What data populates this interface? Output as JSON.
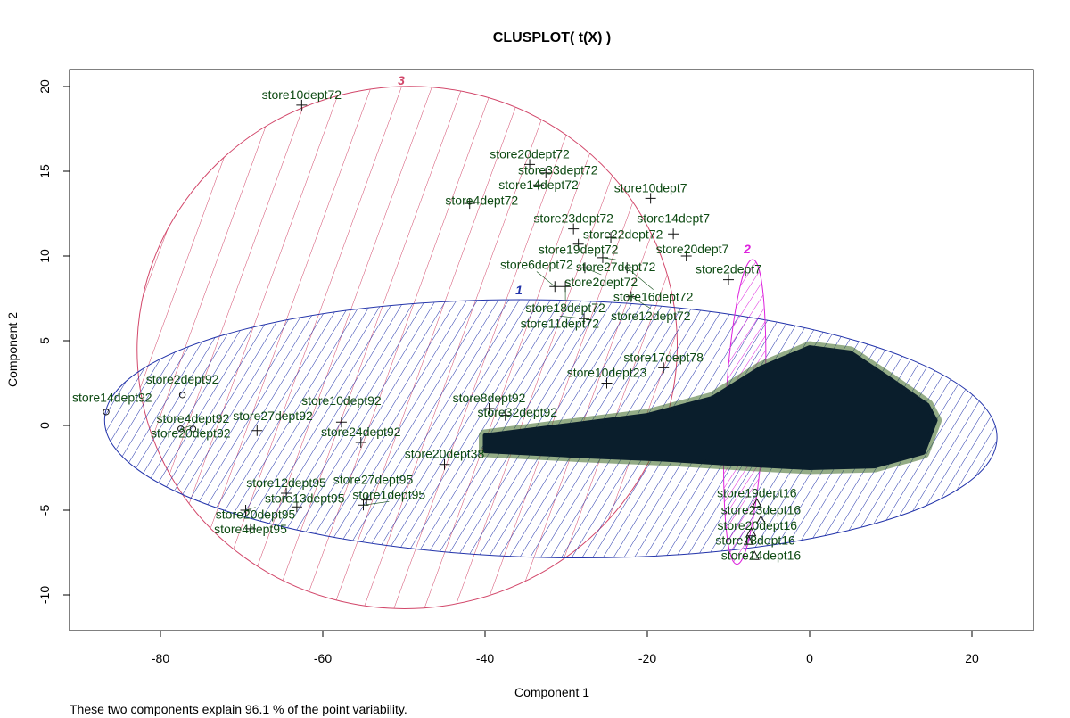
{
  "chart_data": {
    "type": "scatter",
    "title": "CLUSPLOT( t(X) )",
    "xlabel": "Component 1",
    "ylabel": "Component 2",
    "caption": "These two components explain 96.1 % of the point variability.",
    "xlim": [
      -91,
      28
    ],
    "ylim": [
      -12,
      21
    ],
    "x_ticks": [
      -80,
      -60,
      -40,
      -20,
      0,
      20
    ],
    "y_ticks": [
      -10,
      -5,
      0,
      5,
      10,
      15,
      20
    ],
    "grid": false,
    "colors": {
      "cluster1": "#2233aa",
      "cluster2": "#dd22dd",
      "cluster3": "#d2476a",
      "labels": "#0d4a12",
      "points": "#0a1e2c"
    },
    "clusters": [
      {
        "id": "1",
        "center": [
          -31.9,
          -0.2
        ],
        "semi_axes": [
          55,
          7.6
        ],
        "color": "#2233aa",
        "symbol": "circle"
      },
      {
        "id": "2",
        "center": [
          -8.0,
          0.8
        ],
        "semi_axes": [
          2.4,
          9.0
        ],
        "color": "#dd22dd",
        "symbol": "triangle"
      },
      {
        "id": "3",
        "center": [
          -49.6,
          4.6
        ],
        "semi_axes": [
          33.3,
          15.4
        ],
        "color": "#d2476a",
        "symbol": "plus"
      }
    ],
    "dense_region": [
      [
        -40,
        -0.6
      ],
      [
        -30,
        0
      ],
      [
        -20,
        0.6
      ],
      [
        -12,
        1.6
      ],
      [
        -6,
        3.4
      ],
      [
        0,
        4.6
      ],
      [
        5,
        4.3
      ],
      [
        10,
        2.7
      ],
      [
        14.5,
        1.2
      ],
      [
        15.5,
        0.3
      ],
      [
        14,
        -1.6
      ],
      [
        8,
        -2.4
      ],
      [
        0,
        -2.5
      ],
      [
        -8,
        -2.3
      ],
      [
        -18,
        -2.0
      ],
      [
        -28,
        -1.8
      ],
      [
        -40,
        -1.5
      ]
    ],
    "points": [
      {
        "label": "store10dept72",
        "x": -62.6,
        "y": 18.9,
        "cluster": "3"
      },
      {
        "label": "store20dept72",
        "x": -34.5,
        "y": 15.4,
        "cluster": "3"
      },
      {
        "label": "store33dept72",
        "x": -32.5,
        "y": 14.9,
        "cluster": "3"
      },
      {
        "label": "store14dept72",
        "x": -33.4,
        "y": 14.2,
        "cluster": "3"
      },
      {
        "label": "store4dept72",
        "x": -41.9,
        "y": 13.1,
        "cluster": "3"
      },
      {
        "label": "store10dept7",
        "x": -19.6,
        "y": 13.4,
        "cluster": "3"
      },
      {
        "label": "store23dept72",
        "x": -29.1,
        "y": 11.6,
        "cluster": "3"
      },
      {
        "label": "store22dept72",
        "x": -24.5,
        "y": 11.1,
        "cluster": "3"
      },
      {
        "label": "store14dept7",
        "x": -16.8,
        "y": 11.3,
        "cluster": "3"
      },
      {
        "label": "store19dept72",
        "x": -28.5,
        "y": 10.7,
        "cluster": "3"
      },
      {
        "label": "store27dept72",
        "x": -25.5,
        "y": 9.9,
        "cluster": "3"
      },
      {
        "label": "store20dept7",
        "x": -15.2,
        "y": 10.0,
        "cluster": "3"
      },
      {
        "label": "store2dept72",
        "x": -27.7,
        "y": 9.3,
        "cluster": "3"
      },
      {
        "label": "store16dept72",
        "x": -22.5,
        "y": 9.3,
        "cluster": "3"
      },
      {
        "label": "store2dept7",
        "x": -10.0,
        "y": 8.6,
        "cluster": "3"
      },
      {
        "label": "store6dept72",
        "x": -31.4,
        "y": 8.2,
        "cluster": "3"
      },
      {
        "label": "store18dept72",
        "x": -30.1,
        "y": 8.2,
        "cluster": "3"
      },
      {
        "label": "store12dept72",
        "x": -22.0,
        "y": 7.6,
        "cluster": "3"
      },
      {
        "label": "store11dept72",
        "x": -27.8,
        "y": 6.3,
        "cluster": "3"
      },
      {
        "label": "store10dept23",
        "x": -25.0,
        "y": 2.5,
        "cluster": "3"
      },
      {
        "label": "store17dept78",
        "x": -18.0,
        "y": 3.4,
        "cluster": "3"
      },
      {
        "label": "store14dept92",
        "x": -86.7,
        "y": 0.8,
        "cluster": "1"
      },
      {
        "label": "store2dept92",
        "x": -77.3,
        "y": 1.8,
        "cluster": "1"
      },
      {
        "label": "store4dept92",
        "x": -76.0,
        "y": -0.2,
        "cluster": "1"
      },
      {
        "label": "store20dept92",
        "x": -77.5,
        "y": -0.2,
        "cluster": "1"
      },
      {
        "label": "store27dept92",
        "x": -68.1,
        "y": -0.3,
        "cluster": "3"
      },
      {
        "label": "store10dept92",
        "x": -57.7,
        "y": 0.2,
        "cluster": "3"
      },
      {
        "label": "store24dept92",
        "x": -55.3,
        "y": -1.0,
        "cluster": "3"
      },
      {
        "label": "store8dept92",
        "x": -39.5,
        "y": 1.0,
        "cluster": "3"
      },
      {
        "label": "store32dept92",
        "x": -37.5,
        "y": 0.6,
        "cluster": "3"
      },
      {
        "label": "store20dept38",
        "x": -45.0,
        "y": -2.3,
        "cluster": "3"
      },
      {
        "label": "store12dept95",
        "x": -64.5,
        "y": -4.0,
        "cluster": "3"
      },
      {
        "label": "store13dept95",
        "x": -63.2,
        "y": -4.8,
        "cluster": "3"
      },
      {
        "label": "store20dept95",
        "x": -69.5,
        "y": -5.0,
        "cluster": "3"
      },
      {
        "label": "store4dept95",
        "x": -68.9,
        "y": -6.1,
        "cluster": "3"
      },
      {
        "label": "store27dept95",
        "x": -54.6,
        "y": -4.4,
        "cluster": "3"
      },
      {
        "label": "store1dept95",
        "x": -55.0,
        "y": -4.7,
        "cluster": "3"
      },
      {
        "label": "store23dept16",
        "x": -6.0,
        "y": -5.6,
        "cluster": "2"
      },
      {
        "label": "store19dept16",
        "x": -6.5,
        "y": -4.6,
        "cluster": "2"
      },
      {
        "label": "store20dept16",
        "x": -7.2,
        "y": -6.3,
        "cluster": "2"
      },
      {
        "label": "store18dept16",
        "x": -7.5,
        "y": -6.8,
        "cluster": "2"
      },
      {
        "label": "store14dept16",
        "x": -6.8,
        "y": -7.7,
        "cluster": "2"
      }
    ]
  }
}
